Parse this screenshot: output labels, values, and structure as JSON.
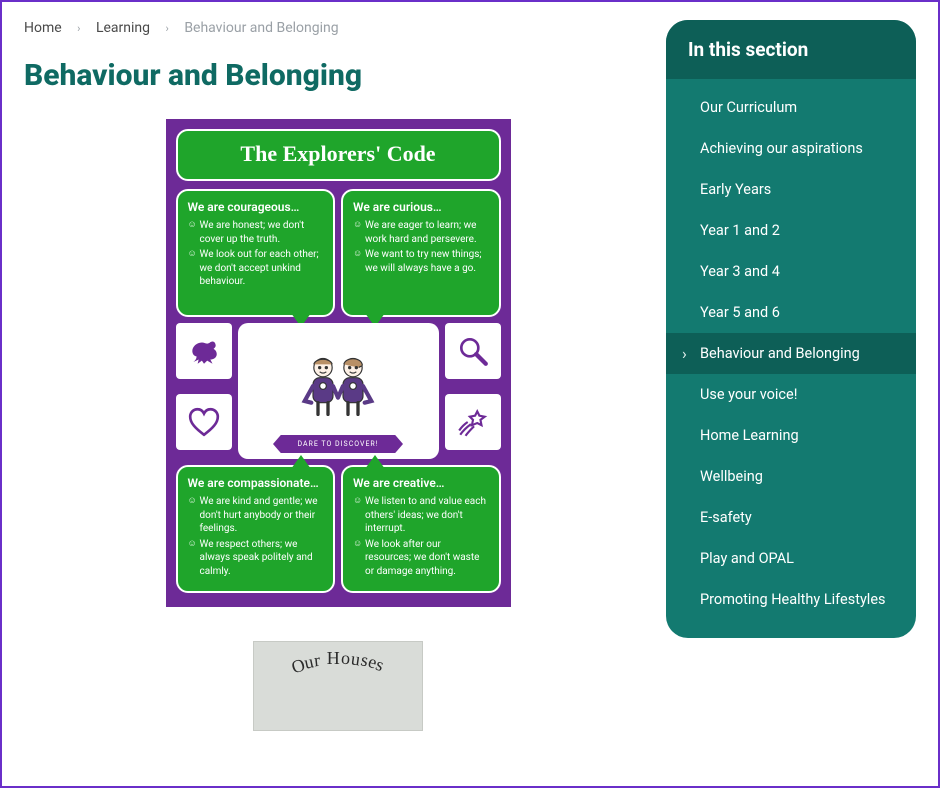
{
  "breadcrumb": {
    "items": [
      {
        "label": "Home"
      },
      {
        "label": "Learning"
      }
    ],
    "current": "Behaviour and Belonging",
    "separator": "›"
  },
  "page_title": "Behaviour and Belonging",
  "poster": {
    "background_color": "#6d2a97",
    "bubble_color": "#1fa52b",
    "title": "The Explorers' Code",
    "center_banner": "DARE TO DISCOVER!",
    "quadrants": {
      "top_left": {
        "heading": "We are courageous…",
        "points": [
          "We are honest; we don't cover up the truth.",
          "We look out for each other; we don't accept unkind behaviour."
        ]
      },
      "top_right": {
        "heading": "We are curious…",
        "points": [
          "We are eager to learn; we work hard and persevere.",
          "We want to try new things; we will always have a go."
        ]
      },
      "bottom_left": {
        "heading": "We are compassionate…",
        "points": [
          "We are kind and gentle; we don't hurt anybody or their feelings.",
          "We respect others; we always speak politely and calmly."
        ]
      },
      "bottom_right": {
        "heading": "We are creative…",
        "points": [
          "We listen to and value each others' ideas; we don't interrupt.",
          "We look after our resources; we don't waste or damage anything."
        ]
      }
    },
    "icons": {
      "top_left": "lion-icon",
      "top_right": "magnifier-icon",
      "bottom_left": "heart-icon",
      "bottom_right": "shooting-star-icon"
    }
  },
  "houses_caption": "Our Houses",
  "sidebar": {
    "title": "In this section",
    "items": [
      {
        "label": "Our Curriculum",
        "active": false
      },
      {
        "label": "Achieving our aspirations",
        "active": false
      },
      {
        "label": "Early Years",
        "active": false
      },
      {
        "label": "Year 1 and 2",
        "active": false
      },
      {
        "label": "Year 3 and 4",
        "active": false
      },
      {
        "label": "Year 5 and 6",
        "active": false
      },
      {
        "label": "Behaviour and Belonging",
        "active": true
      },
      {
        "label": "Use your voice!",
        "active": false
      },
      {
        "label": "Home Learning",
        "active": false
      },
      {
        "label": "Wellbeing",
        "active": false
      },
      {
        "label": "E-safety",
        "active": false
      },
      {
        "label": "Play and OPAL",
        "active": false
      },
      {
        "label": "Promoting Healthy Lifestyles",
        "active": false
      }
    ]
  },
  "colors": {
    "page_border": "#6a2fc9",
    "title_color": "#0f6a63",
    "sidebar_bg": "#137a70",
    "sidebar_head_bg": "#0d5f57",
    "poster_purple": "#6d2a97",
    "poster_green": "#1fa52b"
  }
}
